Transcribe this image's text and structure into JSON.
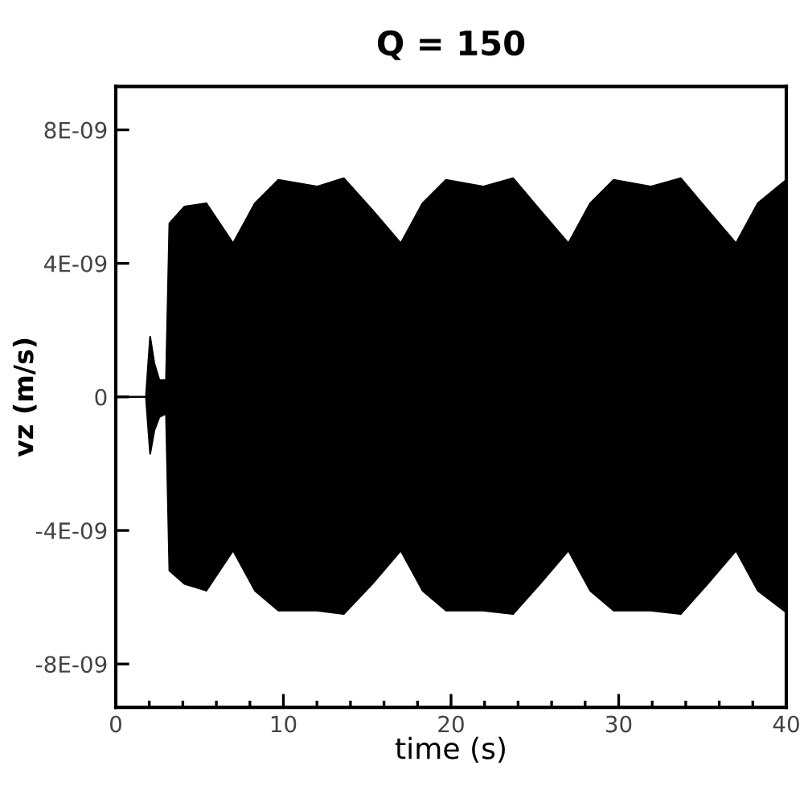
{
  "chart_data": {
    "type": "area",
    "title": "Q = 150",
    "xlabel": "time (s)",
    "ylabel": "vz (m/s)",
    "x": [
      0,
      1.8,
      2.05,
      2.3,
      2.6,
      3.0,
      3.2,
      4.1,
      5.4,
      7.0,
      8.3,
      9.7,
      12.0,
      13.6,
      15.3,
      17.0,
      18.3,
      19.7,
      21.9,
      23.7,
      25.3,
      27.0,
      28.3,
      29.7,
      31.9,
      33.7,
      35.3,
      37.0,
      38.3,
      40
    ],
    "series": [
      {
        "color": "#000000",
        "values": [
          0,
          0,
          1.8e-09,
          1e-09,
          5e-10,
          5e-10,
          5.2e-09,
          5.7e-09,
          5.8e-09,
          4.6e-09,
          5.8e-09,
          6.5e-09,
          6.3e-09,
          6.55e-09,
          5.6e-09,
          4.6e-09,
          5.8e-09,
          6.5e-09,
          6.3e-09,
          6.55e-09,
          5.6e-09,
          4.6e-09,
          5.8e-09,
          6.5e-09,
          6.3e-09,
          6.55e-09,
          5.6e-09,
          4.6e-09,
          5.8e-09,
          6.5e-09
        ]
      },
      {
        "color": "#000000",
        "values": [
          0,
          0,
          -1.7e-09,
          -1e-09,
          -6e-10,
          -5e-10,
          -5.2e-09,
          -5.6e-09,
          -5.8e-09,
          -4.6e-09,
          -5.8e-09,
          -6.4e-09,
          -6.4e-09,
          -6.5e-09,
          -5.6e-09,
          -4.6e-09,
          -5.8e-09,
          -6.4e-09,
          -6.4e-09,
          -6.5e-09,
          -5.6e-09,
          -4.6e-09,
          -5.8e-09,
          -6.4e-09,
          -6.4e-09,
          -6.5e-09,
          -5.6e-09,
          -4.6e-09,
          -5.8e-09,
          -6.45e-09
        ]
      }
    ],
    "xlim": [
      0,
      40
    ],
    "xticks": [
      0,
      {
        "value": 2,
        "label": null
      },
      {
        "value": 4,
        "label": null
      },
      {
        "value": 6,
        "label": null
      },
      {
        "value": 8,
        "label": null
      },
      10,
      {
        "value": 12,
        "label": null
      },
      {
        "value": 14,
        "label": null
      },
      {
        "value": 16,
        "label": null
      },
      {
        "value": 18,
        "label": null
      },
      20,
      {
        "value": 22,
        "label": null
      },
      {
        "value": 24,
        "label": null
      },
      {
        "value": 26,
        "label": null
      },
      {
        "value": 28,
        "label": null
      },
      30,
      {
        "value": 32,
        "label": null
      },
      {
        "value": 34,
        "label": null
      },
      {
        "value": 36,
        "label": null
      },
      {
        "value": 38,
        "label": null
      },
      40
    ],
    "ylim": [
      -9.3e-09,
      9.3e-09
    ],
    "yticks": [
      {
        "value": -8e-09,
        "label": "-8E-09"
      },
      {
        "value": -4e-09,
        "label": "-4E-09"
      },
      0,
      {
        "value": 4e-09,
        "label": "4E-09"
      },
      {
        "value": 8e-09,
        "label": "8E-09"
      }
    ],
    "grid": false,
    "legend": false
  }
}
